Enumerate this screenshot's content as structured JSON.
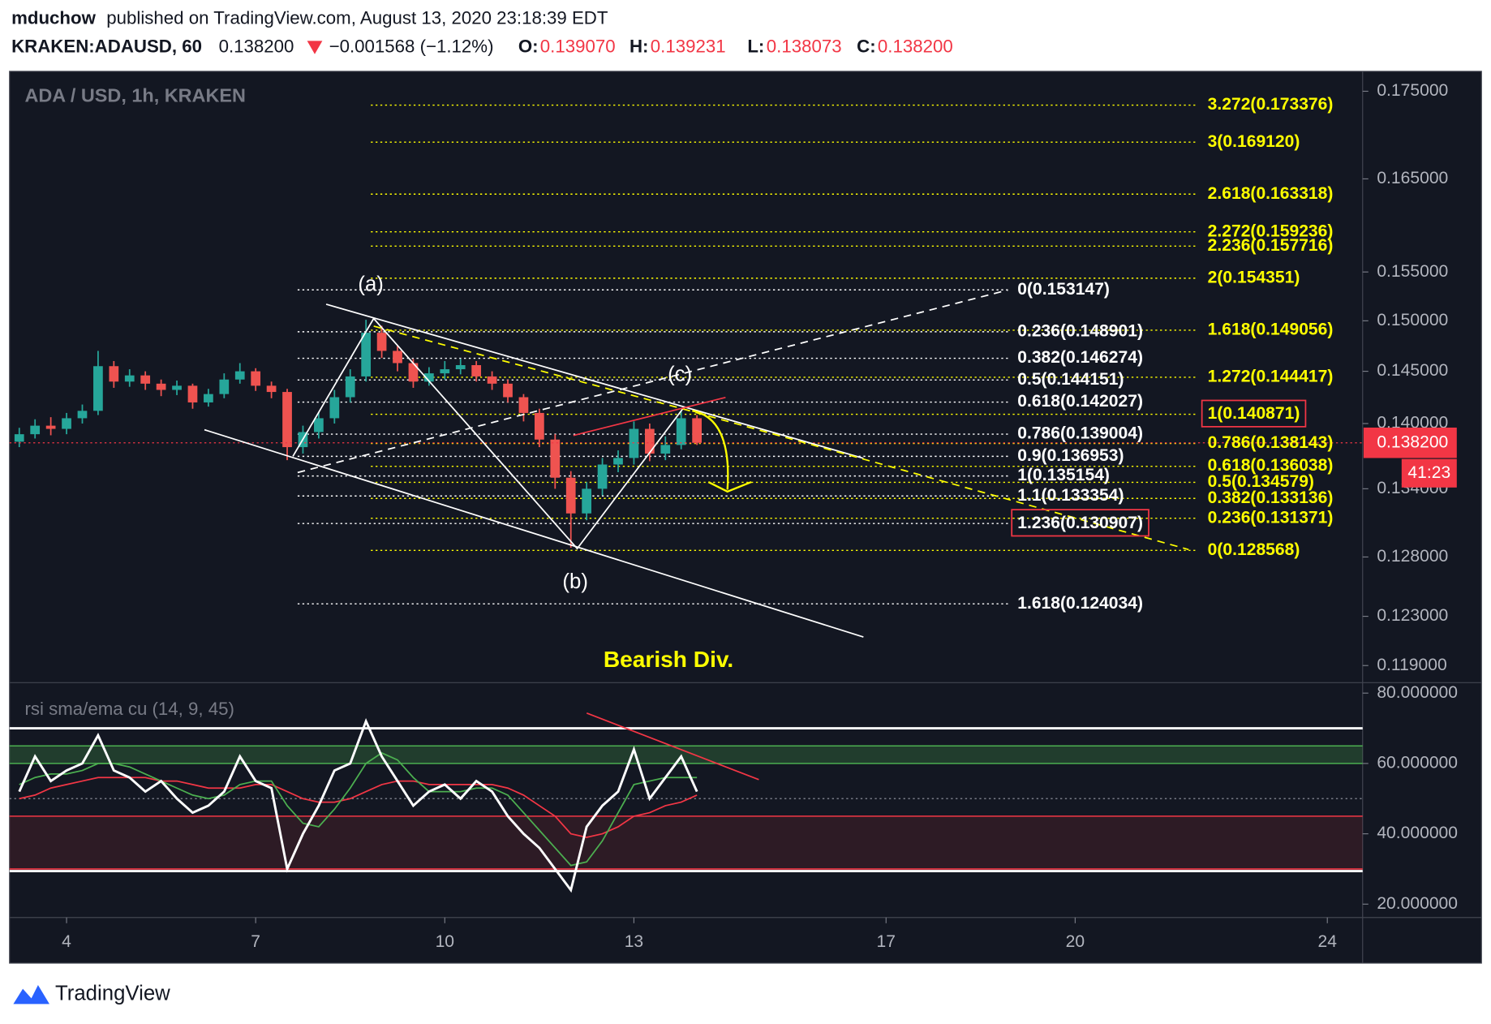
{
  "header": {
    "author": "mduchow",
    "published": "published on TradingView.com, August 13, 2020 23:18:39 EDT",
    "symbol": "KRAKEN:ADAUSD, 60",
    "last": "0.138200",
    "change": "−0.001568 (−1.12%)",
    "ohlc": [
      {
        "key": "O:",
        "value": "0.139070"
      },
      {
        "key": "H:",
        "value": "0.139231"
      },
      {
        "key": "L:",
        "value": "0.138073"
      },
      {
        "key": "C:",
        "value": "0.138200"
      }
    ]
  },
  "chart_data": [
    {
      "type": "candlestick",
      "title": "ADA / USD, 1h, KRAKEN",
      "log": true,
      "up_color": "#26a69a",
      "down_color": "#ef5350",
      "x": [
        3.25,
        3.5,
        3.75,
        4,
        4.25,
        4.5,
        4.75,
        5,
        5.25,
        5.5,
        5.75,
        6,
        6.25,
        6.5,
        6.75,
        7,
        7.25,
        7.5,
        7.75,
        8,
        8.25,
        8.5,
        8.75,
        9,
        9.25,
        9.5,
        9.75,
        10,
        10.25,
        10.5,
        10.75,
        11,
        11.25,
        11.5,
        11.75,
        12,
        12.25,
        12.5,
        12.75,
        13,
        13.25,
        13.5,
        13.75,
        14
      ],
      "open": [
        0.1383,
        0.139,
        0.1398,
        0.1395,
        0.1405,
        0.1412,
        0.1455,
        0.144,
        0.1446,
        0.1438,
        0.1432,
        0.1436,
        0.142,
        0.1428,
        0.1442,
        0.145,
        0.1436,
        0.143,
        0.1378,
        0.1392,
        0.1405,
        0.1425,
        0.1445,
        0.1488,
        0.147,
        0.1458,
        0.144,
        0.1448,
        0.1452,
        0.1456,
        0.1445,
        0.1438,
        0.1425,
        0.141,
        0.1385,
        0.135,
        0.1318,
        0.134,
        0.1362,
        0.1368,
        0.1395,
        0.1372,
        0.138,
        0.1405
      ],
      "high": [
        0.1396,
        0.1404,
        0.1406,
        0.141,
        0.1418,
        0.147,
        0.146,
        0.1452,
        0.145,
        0.1442,
        0.1441,
        0.1438,
        0.1433,
        0.1448,
        0.1458,
        0.1453,
        0.144,
        0.1433,
        0.1398,
        0.1411,
        0.1432,
        0.1452,
        0.1501,
        0.1495,
        0.1476,
        0.1462,
        0.1454,
        0.146,
        0.1462,
        0.146,
        0.145,
        0.1442,
        0.1428,
        0.1414,
        0.139,
        0.1356,
        0.1346,
        0.1368,
        0.1375,
        0.1402,
        0.14,
        0.1388,
        0.1412,
        0.1408
      ],
      "low": [
        0.1378,
        0.1386,
        0.1389,
        0.139,
        0.14,
        0.1408,
        0.1434,
        0.1435,
        0.1432,
        0.1426,
        0.1427,
        0.1414,
        0.1416,
        0.1424,
        0.1438,
        0.1431,
        0.1424,
        0.1366,
        0.1372,
        0.1386,
        0.14,
        0.142,
        0.144,
        0.1463,
        0.145,
        0.1434,
        0.1436,
        0.1442,
        0.1447,
        0.144,
        0.1432,
        0.142,
        0.1402,
        0.1378,
        0.134,
        0.1288,
        0.1312,
        0.1334,
        0.1355,
        0.1362,
        0.1365,
        0.1366,
        0.1376,
        0.138
      ],
      "close": [
        0.139,
        0.1398,
        0.1395,
        0.1405,
        0.1412,
        0.1455,
        0.144,
        0.1446,
        0.1438,
        0.1432,
        0.1436,
        0.142,
        0.1428,
        0.1442,
        0.145,
        0.1436,
        0.143,
        0.1378,
        0.1392,
        0.1405,
        0.1425,
        0.1445,
        0.1488,
        0.147,
        0.1458,
        0.144,
        0.1448,
        0.1452,
        0.1456,
        0.1445,
        0.1438,
        0.1425,
        0.141,
        0.1385,
        0.135,
        0.1318,
        0.134,
        0.1362,
        0.1368,
        0.1395,
        0.1372,
        0.138,
        0.1405,
        0.1382
      ],
      "xlim": [
        3.095,
        24.56
      ],
      "xticks": [
        4,
        7,
        10,
        13,
        17,
        20,
        24
      ],
      "ylim": [
        0.11764,
        0.17736
      ],
      "yticks": [
        {
          "value": 0.175,
          "label": "0.175000"
        },
        {
          "value": 0.165,
          "label": "0.165000"
        },
        {
          "value": 0.155,
          "label": "0.155000"
        },
        {
          "value": 0.15,
          "label": "0.150000"
        },
        {
          "value": 0.145,
          "label": "0.145000"
        },
        {
          "value": 0.14,
          "label": "0.140000"
        },
        {
          "value": 0.134,
          "label": "0.134000"
        },
        {
          "value": 0.128,
          "label": "0.128000"
        },
        {
          "value": 0.123,
          "label": "0.123000"
        },
        {
          "value": 0.119,
          "label": "0.119000"
        }
      ],
      "fib_sets": [
        {
          "color": "#ffff00",
          "levels": [
            0.173376,
            0.16912,
            0.163318,
            0.159236,
            0.157716,
            0.154351,
            0.149056,
            0.144417,
            0.140871,
            0.138143,
            0.136038,
            0.134579,
            0.133136,
            0.131371,
            0.128568
          ],
          "level_labels": [
            "3.272(0.173376)",
            "3(0.169120)",
            "2.618(0.163318)",
            "2.272(0.159236)",
            "2.236(0.157716)",
            "2(0.154351)",
            "1.618(0.149056)",
            "1.272(0.144417)",
            "1(0.140871)",
            "0.786(0.138143)",
            "0.618(0.136038)",
            "0.5(0.134579)",
            "0.382(0.133136)",
            "0.236(0.131371)",
            "0(0.128568)"
          ],
          "boxed": [
            8
          ]
        },
        {
          "color": "#ffffff",
          "levels": [
            0.153147,
            0.148901,
            0.146274,
            0.144151,
            0.142027,
            0.139004,
            0.136953,
            0.135154,
            0.133354,
            0.130907,
            0.124034
          ],
          "level_labels": [
            "0(0.153147)",
            "0.236(0.148901)",
            "0.382(0.146274)",
            "0.5(0.144151)",
            "0.618(0.142027)",
            "0.786(0.139004)",
            "0.9(0.136953)",
            "1(0.135154)",
            "1.1(0.133354)",
            "1.236(0.130907)",
            "1.618(0.124034)"
          ],
          "boxed": [
            9
          ]
        }
      ],
      "last_price": 0.1382,
      "last_price_label": "0.138200",
      "countdown": "41:23",
      "annotations": [
        {
          "text": "(a)",
          "color": "#ffffff"
        },
        {
          "text": "(b)",
          "color": "#ffffff"
        },
        {
          "text": "(c)",
          "color": "#ffffff"
        },
        {
          "text": "Bearish Div.",
          "color": "#ffff00"
        }
      ]
    },
    {
      "type": "line",
      "title": "rsi sma/ema cu (14, 9, 45)",
      "x": [
        3.25,
        3.5,
        3.75,
        4,
        4.25,
        4.5,
        4.75,
        5,
        5.25,
        5.5,
        5.75,
        6,
        6.25,
        6.5,
        6.75,
        7,
        7.25,
        7.5,
        7.75,
        8,
        8.25,
        8.5,
        8.75,
        9,
        9.25,
        9.5,
        9.75,
        10,
        10.25,
        10.5,
        10.75,
        11,
        11.25,
        11.5,
        11.75,
        12,
        12.25,
        12.5,
        12.75,
        13,
        13.25,
        13.5,
        13.75,
        14
      ],
      "series": [
        {
          "color": "#ffffff",
          "values": [
            52,
            62,
            55,
            58,
            60,
            68,
            58,
            56,
            52,
            55,
            50,
            46,
            48,
            52,
            62,
            55,
            53,
            30,
            40,
            48,
            58,
            60,
            72,
            62,
            55,
            48,
            52,
            54,
            50,
            55,
            52,
            45,
            40,
            36,
            30,
            24,
            42,
            48,
            52,
            64,
            50,
            56,
            62,
            52
          ]
        },
        {
          "color": "#4caf50",
          "values": [
            54,
            56,
            57,
            57,
            58,
            60,
            60,
            59,
            57,
            55,
            53,
            51,
            50,
            51,
            54,
            55,
            55,
            48,
            43,
            42,
            47,
            53,
            60,
            63,
            61,
            56,
            52,
            52,
            52,
            53,
            53,
            51,
            46,
            41,
            36,
            31,
            32,
            38,
            46,
            54,
            55,
            56,
            56,
            56
          ]
        },
        {
          "color": "#f23645",
          "values": [
            50,
            51,
            53,
            54,
            55,
            56,
            56,
            56,
            56,
            55,
            55,
            54,
            53,
            53,
            53,
            54,
            54,
            52,
            50,
            49,
            49,
            50,
            52,
            54,
            55,
            55,
            54,
            54,
            54,
            54,
            54,
            53,
            51,
            48,
            45,
            40,
            39,
            40,
            42,
            45,
            46,
            48,
            49,
            51
          ]
        }
      ],
      "xlim": [
        3.095,
        24.56
      ],
      "ylim": [
        16.2,
        82.97
      ],
      "yticks": [
        {
          "value": 80,
          "label": "80.000000"
        },
        {
          "value": 60,
          "label": "60.000000"
        },
        {
          "value": 40,
          "label": "40.000000"
        },
        {
          "value": 20,
          "label": "20.000000"
        }
      ],
      "levels": [
        {
          "value": 70,
          "color": "#ffffff"
        },
        {
          "value": 65,
          "color": "#4caf50"
        },
        {
          "value": 60,
          "color": "#4caf50"
        },
        {
          "value": 50,
          "color": "#787b86"
        },
        {
          "value": 45,
          "color": "#f23645"
        },
        {
          "value": 30,
          "color": "#f23645"
        },
        {
          "value": 29.4,
          "color": "#ffffff"
        }
      ],
      "bands": [
        {
          "from": 60,
          "to": 65,
          "color": "#4caf50"
        },
        {
          "from": 30,
          "to": 45,
          "color": "#f23645"
        }
      ]
    }
  ],
  "footer": {
    "brand": "TradingView"
  }
}
